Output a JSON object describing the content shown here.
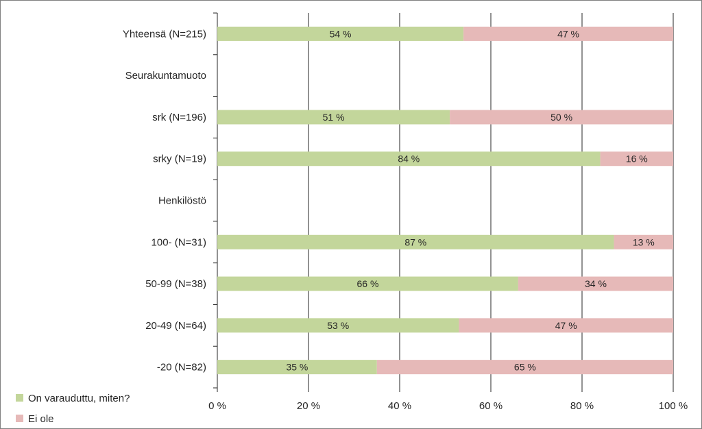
{
  "chart_data": {
    "type": "bar",
    "orientation": "horizontal",
    "stacked": true,
    "categories": [
      "Yhteensä (N=215)",
      "Seurakuntamuoto",
      "srk (N=196)",
      "srky (N=19)",
      "Henkilöstö",
      "100- (N=31)",
      "50-99 (N=38)",
      "20-49 (N=64)",
      "-20 (N=82)"
    ],
    "series": [
      {
        "name": "On varauduttu, miten?",
        "color": "#c3d69b",
        "values": [
          54,
          null,
          51,
          84,
          null,
          87,
          66,
          53,
          35
        ],
        "labels": [
          "54 %",
          "",
          "51 %",
          "84 %",
          "",
          "87 %",
          "66 %",
          "53 %",
          "35 %"
        ]
      },
      {
        "name": "Ei ole",
        "color": "#e6b9b8",
        "values": [
          47,
          null,
          50,
          16,
          null,
          13,
          34,
          47,
          65
        ],
        "labels": [
          "47 %",
          "",
          "50 %",
          "16 %",
          "",
          "13 %",
          "34 %",
          "47 %",
          "65 %"
        ]
      }
    ],
    "xlim": [
      0,
      100
    ],
    "x_ticks": [
      0,
      20,
      40,
      60,
      80,
      100
    ],
    "x_tick_labels": [
      "0 %",
      "20 %",
      "40 %",
      "60 %",
      "80 %",
      "100 %"
    ],
    "grid": true,
    "legend_position": "bottom-left",
    "title": "",
    "xlabel": "",
    "ylabel": ""
  }
}
